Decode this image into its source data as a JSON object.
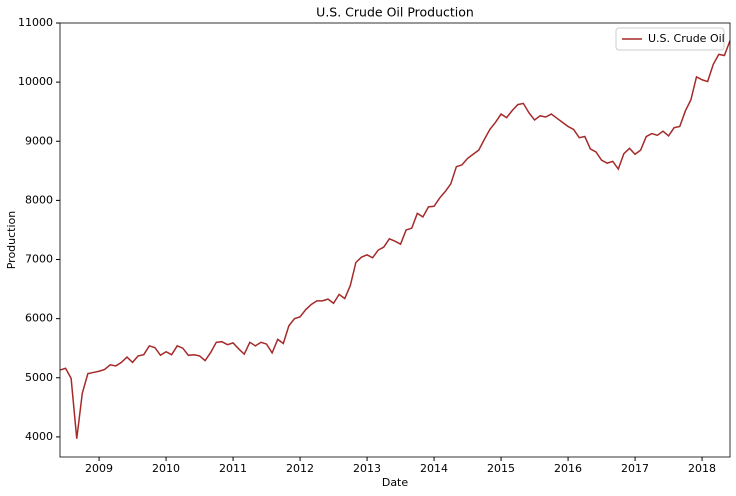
{
  "chart_data": {
    "type": "line",
    "title": "U.S. Crude Oil Production",
    "xlabel": "Date",
    "ylabel": "Production",
    "legend": "upper right",
    "x": [
      2008.417,
      2008.5,
      2008.583,
      2008.667,
      2008.75,
      2008.833,
      2008.917,
      2009,
      2009.083,
      2009.167,
      2009.25,
      2009.333,
      2009.417,
      2009.5,
      2009.583,
      2009.667,
      2009.75,
      2009.833,
      2009.917,
      2010,
      2010.083,
      2010.167,
      2010.25,
      2010.333,
      2010.417,
      2010.5,
      2010.583,
      2010.667,
      2010.75,
      2010.833,
      2010.917,
      2011,
      2011.083,
      2011.167,
      2011.25,
      2011.333,
      2011.417,
      2011.5,
      2011.583,
      2011.667,
      2011.75,
      2011.833,
      2011.917,
      2012,
      2012.083,
      2012.167,
      2012.25,
      2012.333,
      2012.417,
      2012.5,
      2012.583,
      2012.667,
      2012.75,
      2012.833,
      2012.917,
      2013,
      2013.083,
      2013.167,
      2013.25,
      2013.333,
      2013.417,
      2013.5,
      2013.583,
      2013.667,
      2013.75,
      2013.833,
      2013.917,
      2014,
      2014.083,
      2014.167,
      2014.25,
      2014.333,
      2014.417,
      2014.5,
      2014.583,
      2014.667,
      2014.75,
      2014.833,
      2014.917,
      2015,
      2015.083,
      2015.167,
      2015.25,
      2015.333,
      2015.417,
      2015.5,
      2015.583,
      2015.667,
      2015.75,
      2015.833,
      2015.917,
      2016,
      2016.083,
      2016.167,
      2016.25,
      2016.333,
      2016.417,
      2016.5,
      2016.583,
      2016.667,
      2016.75,
      2016.833,
      2016.917,
      2017,
      2017.083,
      2017.167,
      2017.25,
      2017.333,
      2017.417,
      2017.5,
      2017.583,
      2017.667,
      2017.75,
      2017.833,
      2017.917,
      2018,
      2018.083,
      2018.167,
      2018.25,
      2018.333,
      2018.417
    ],
    "series": [
      {
        "name": "U.S. Crude Oil",
        "color": "#a52a2a",
        "values": [
          5130,
          5160,
          4990,
          3970,
          4740,
          5070,
          5090,
          5110,
          5140,
          5220,
          5200,
          5260,
          5350,
          5260,
          5370,
          5390,
          5540,
          5510,
          5380,
          5440,
          5390,
          5540,
          5500,
          5380,
          5390,
          5370,
          5290,
          5430,
          5600,
          5610,
          5560,
          5590,
          5490,
          5400,
          5600,
          5540,
          5600,
          5570,
          5420,
          5650,
          5580,
          5880,
          6000,
          6030,
          6150,
          6240,
          6300,
          6300,
          6330,
          6260,
          6410,
          6340,
          6560,
          6950,
          7040,
          7080,
          7030,
          7160,
          7210,
          7350,
          7310,
          7260,
          7500,
          7530,
          7780,
          7720,
          7890,
          7900,
          8040,
          8150,
          8280,
          8570,
          8600,
          8710,
          8780,
          8850,
          9030,
          9200,
          9320,
          9460,
          9400,
          9520,
          9620,
          9640,
          9480,
          9360,
          9430,
          9410,
          9460,
          9390,
          9320,
          9250,
          9200,
          9060,
          9080,
          8870,
          8820,
          8680,
          8630,
          8660,
          8530,
          8790,
          8880,
          8780,
          8850,
          9080,
          9130,
          9100,
          9170,
          9090,
          9230,
          9250,
          9510,
          9700,
          10090,
          10040,
          10010,
          10300,
          10470,
          10450,
          10700
        ]
      }
    ],
    "xlim": [
      2008.417,
      2018.417
    ],
    "xticks": [
      2009,
      2010,
      2011,
      2012,
      2013,
      2014,
      2015,
      2016,
      2017,
      2018
    ],
    "ylim": [
      3660,
      11000
    ],
    "yticks": [
      4000,
      5000,
      6000,
      7000,
      8000,
      9000,
      10000,
      11000
    ]
  }
}
